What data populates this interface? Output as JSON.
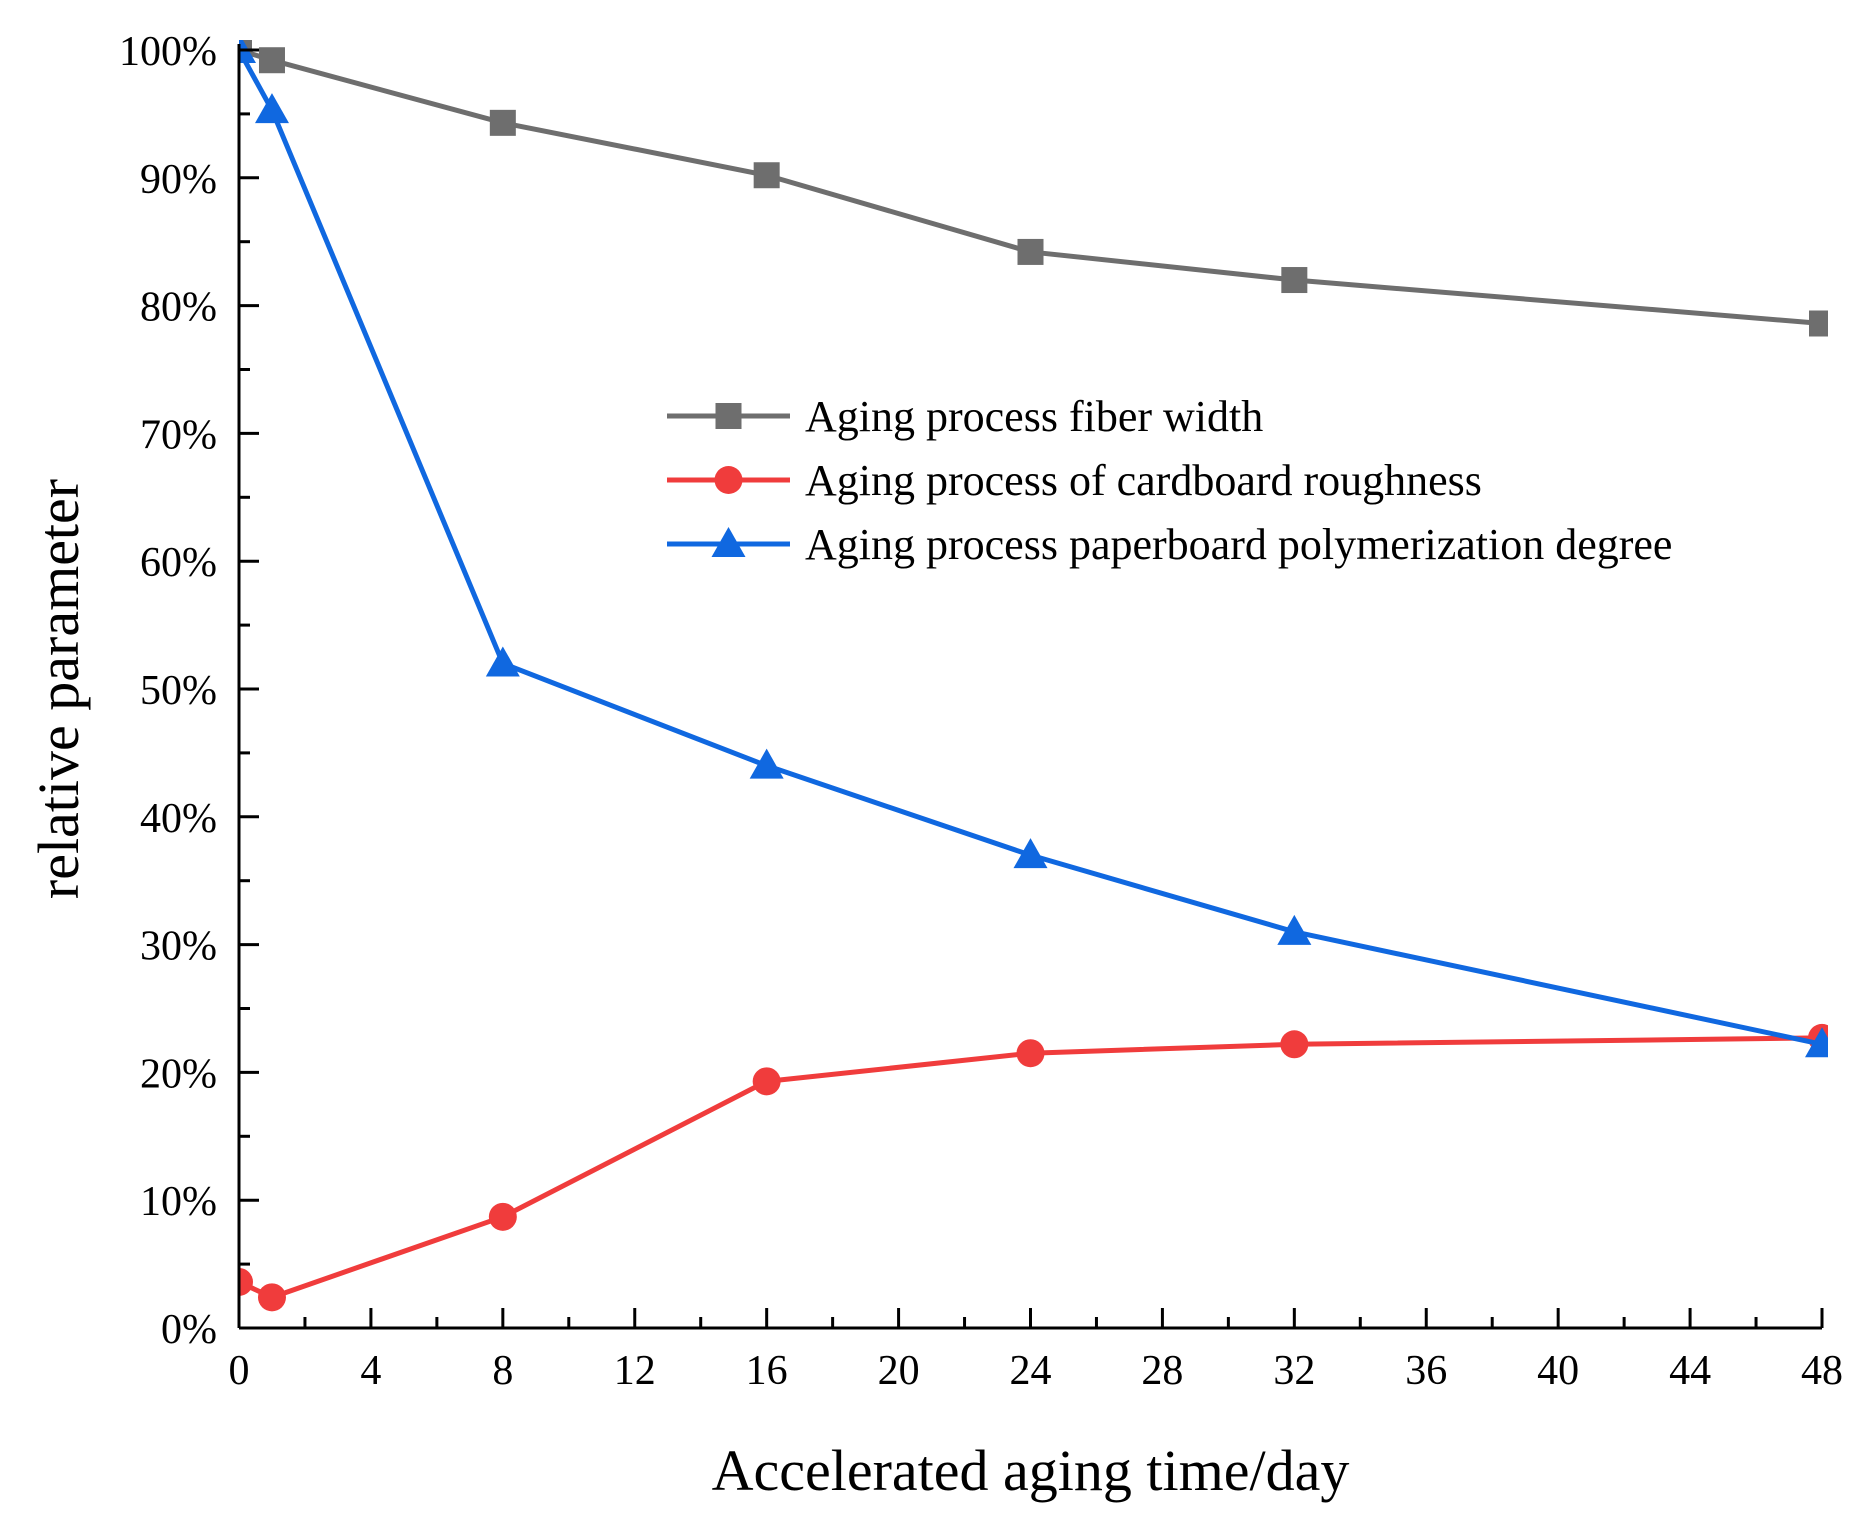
{
  "chart_data": {
    "type": "line",
    "title": "",
    "xlabel": "Accelerated aging time/day",
    "ylabel": "relative parameter",
    "xlim": [
      0,
      48
    ],
    "ylim": [
      0,
      100
    ],
    "x_ticks": [
      0,
      4,
      8,
      12,
      16,
      20,
      24,
      28,
      32,
      36,
      40,
      44,
      48
    ],
    "x_tick_labels": [
      "0",
      "4",
      "8",
      "12",
      "16",
      "20",
      "24",
      "28",
      "32",
      "36",
      "40",
      "44",
      "48"
    ],
    "y_ticks": [
      0,
      10,
      20,
      30,
      40,
      50,
      60,
      70,
      80,
      90,
      100
    ],
    "y_tick_labels": [
      "0%",
      "10%",
      "20%",
      "30%",
      "40%",
      "50%",
      "60%",
      "70%",
      "80%",
      "90%",
      "100%"
    ],
    "grid": false,
    "legend_position": "upper-right",
    "series": [
      {
        "name": "Aging process fiber width",
        "color": "#6e6e6e",
        "marker": "square",
        "x": [
          0,
          1,
          8,
          16,
          24,
          32,
          48
        ],
        "y": [
          100,
          99.2,
          94.3,
          90.2,
          84.2,
          82.0,
          78.6
        ]
      },
      {
        "name": "Aging process of cardboard roughness",
        "color": "#f03c3c",
        "marker": "circle",
        "x": [
          0,
          1,
          8,
          16,
          24,
          32,
          48
        ],
        "y": [
          3.6,
          2.4,
          8.7,
          19.3,
          21.5,
          22.2,
          22.7
        ]
      },
      {
        "name": "Aging process paperboard polymerization degree",
        "color": "#1068e0",
        "marker": "triangle",
        "x": [
          0,
          1,
          8,
          16,
          24,
          32,
          48
        ],
        "y": [
          100,
          95.3,
          52.0,
          44.0,
          37.0,
          31.0,
          22.2
        ]
      }
    ]
  }
}
